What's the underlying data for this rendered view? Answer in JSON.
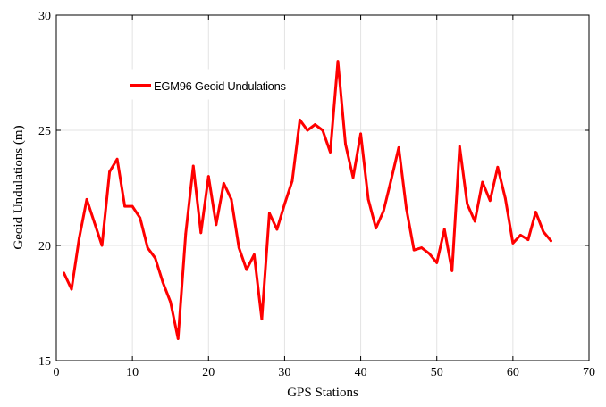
{
  "chart_data": {
    "type": "line",
    "title": "",
    "xlabel": "GPS Stations",
    "ylabel": "Geoid Undulations (m)",
    "xlim": [
      0,
      70
    ],
    "ylim": [
      15,
      30
    ],
    "xticks": [
      "0",
      "10",
      "20",
      "30",
      "40",
      "50",
      "60",
      "70"
    ],
    "yticks": [
      "15",
      "20",
      "25",
      "30"
    ],
    "grid": true,
    "legend_position": "upper-left",
    "series": [
      {
        "name": "EGM96 Geoid Undulations",
        "color": "#ff0000",
        "x": [
          1,
          2,
          3,
          4,
          5,
          6,
          7,
          8,
          9,
          10,
          11,
          12,
          13,
          14,
          15,
          16,
          17,
          18,
          19,
          20,
          21,
          22,
          23,
          24,
          25,
          26,
          27,
          28,
          29,
          30,
          31,
          32,
          33,
          34,
          35,
          36,
          37,
          38,
          39,
          40,
          41,
          42,
          43,
          44,
          45,
          46,
          47,
          48,
          49,
          50,
          51,
          52,
          53,
          54,
          55,
          56,
          57,
          58,
          59,
          60,
          61,
          62,
          63,
          64,
          65
        ],
        "y": [
          18.8,
          18.1,
          20.3,
          22.0,
          21.0,
          20.0,
          23.2,
          23.75,
          21.7,
          21.7,
          21.2,
          19.9,
          19.45,
          18.4,
          17.55,
          15.95,
          20.5,
          23.45,
          20.55,
          23.0,
          20.9,
          22.7,
          22.0,
          19.9,
          18.95,
          19.6,
          16.8,
          21.4,
          20.7,
          21.8,
          22.8,
          25.45,
          25.0,
          25.25,
          25.0,
          24.05,
          28.0,
          24.4,
          22.95,
          24.85,
          22.0,
          20.75,
          21.5,
          22.85,
          24.25,
          21.6,
          19.8,
          19.9,
          19.65,
          19.25,
          20.7,
          18.9,
          24.3,
          21.8,
          21.05,
          22.75,
          21.95,
          23.4,
          22.05,
          20.1,
          20.45,
          20.25,
          21.45,
          20.6,
          20.2
        ]
      }
    ]
  }
}
